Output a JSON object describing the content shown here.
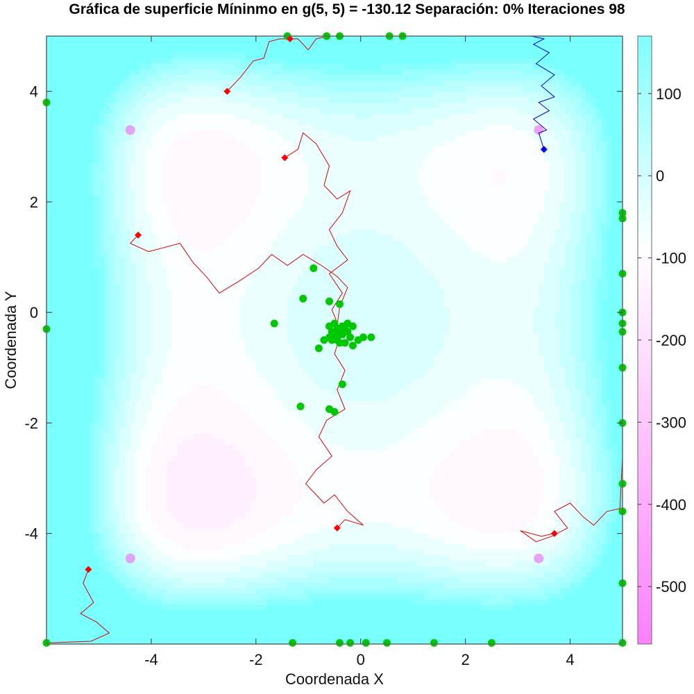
{
  "chart_data": {
    "type": "heatmap",
    "title": "Gráfica de superficie Míninmo en g(5, 5) = -130.12 Separación: 0% Iteraciones 98",
    "xlabel": "Coordenada X",
    "ylabel": "Coordenada Y",
    "xlim": [
      -6,
      5
    ],
    "ylim": [
      -6,
      5
    ],
    "x_ticks": [
      {
        "v": -4,
        "label": "-4"
      },
      {
        "v": -2,
        "label": "-2"
      },
      {
        "v": 0,
        "label": "0"
      },
      {
        "v": 2,
        "label": "2"
      },
      {
        "v": 4,
        "label": "4"
      }
    ],
    "y_ticks": [
      {
        "v": -4,
        "label": "-4"
      },
      {
        "v": -2,
        "label": "-2"
      },
      {
        "v": 0,
        "label": "0"
      },
      {
        "v": 2,
        "label": "2"
      },
      {
        "v": 4,
        "label": "4"
      }
    ],
    "colorbar": {
      "range": [
        -570,
        170
      ],
      "ticks": [
        {
          "v": 100,
          "label": "100"
        },
        {
          "v": 0,
          "label": "0"
        },
        {
          "v": -100,
          "label": "-100"
        },
        {
          "v": -200,
          "label": "-200"
        },
        {
          "v": -300,
          "label": "-300"
        },
        {
          "v": -400,
          "label": "-400"
        },
        {
          "v": -500,
          "label": "-500"
        }
      ],
      "low_color": "#ff80ff",
      "mid_color": "#ffffff",
      "high_color": "#80ffff"
    },
    "surface": {
      "function": "styblinski_tang_sum",
      "levels": 22,
      "center_x": -0.1,
      "center_y": -0.3,
      "minima": [
        [
          -4.4,
          3.3
        ],
        [
          3.4,
          3.3
        ],
        [
          -4.4,
          -4.45
        ],
        [
          3.4,
          -4.45
        ]
      ]
    },
    "colors": {
      "swarm": "#00c800",
      "trail": "#dd0000",
      "best_trail": "#0000dd",
      "marker": "#ff0000",
      "best_marker": "#0000ff",
      "frame": "#666666"
    },
    "swarm_points": [
      [
        -0.45,
        -0.3
      ],
      [
        -0.4,
        -0.35
      ],
      [
        -0.35,
        -0.4
      ],
      [
        -0.5,
        -0.4
      ],
      [
        -0.3,
        -0.3
      ],
      [
        -0.45,
        -0.45
      ],
      [
        -0.6,
        -0.25
      ],
      [
        -0.25,
        -0.35
      ],
      [
        -0.4,
        -0.55
      ],
      [
        -0.55,
        -0.5
      ],
      [
        -0.35,
        -0.25
      ],
      [
        -0.5,
        -0.2
      ],
      [
        -0.2,
        -0.45
      ],
      [
        -0.6,
        -0.45
      ],
      [
        -0.3,
        -0.55
      ],
      [
        -0.15,
        -0.25
      ],
      [
        -0.05,
        -0.5
      ],
      [
        0.2,
        -0.45
      ],
      [
        -0.7,
        -0.5
      ],
      [
        -0.8,
        -0.65
      ],
      [
        -0.4,
        0.15
      ],
      [
        -0.6,
        0.2
      ],
      [
        -1.1,
        0.25
      ],
      [
        -0.9,
        0.8
      ],
      [
        -1.65,
        -0.2
      ],
      [
        -0.35,
        -1.3
      ],
      [
        -0.6,
        -1.75
      ],
      [
        -0.5,
        -1.8
      ],
      [
        -1.15,
        -1.7
      ],
      [
        -0.15,
        -0.6
      ],
      [
        -0.45,
        -0.5
      ],
      [
        0.05,
        -0.45
      ],
      [
        -0.25,
        -0.2
      ],
      [
        -0.55,
        -0.35
      ],
      [
        -6,
        3.8
      ],
      [
        -6,
        -0.3
      ],
      [
        -6,
        -5.98
      ],
      [
        5,
        1.8
      ],
      [
        5,
        1.7
      ],
      [
        5,
        0.7
      ],
      [
        5,
        0.0
      ],
      [
        5,
        -0.2
      ],
      [
        5,
        -0.35
      ],
      [
        5,
        -1.0
      ],
      [
        5,
        -2.0
      ],
      [
        5,
        -3.1
      ],
      [
        5,
        -3.6
      ],
      [
        5,
        -4.9
      ],
      [
        5,
        -5.98
      ],
      [
        -1.4,
        5.0
      ],
      [
        -0.65,
        5.0
      ],
      [
        -0.4,
        5.0
      ],
      [
        0.55,
        5.0
      ],
      [
        0.8,
        5.0
      ],
      [
        -1.3,
        -5.98
      ],
      [
        -0.4,
        -5.98
      ],
      [
        -0.2,
        -5.98
      ],
      [
        0.1,
        -5.98
      ],
      [
        0.5,
        -5.98
      ],
      [
        1.4,
        -5.98
      ],
      [
        2.5,
        -5.98
      ]
    ],
    "markers": [
      {
        "x": -2.55,
        "y": 4.0,
        "color": "red"
      },
      {
        "x": -1.45,
        "y": 2.8,
        "color": "red"
      },
      {
        "x": -1.35,
        "y": 4.95,
        "color": "red"
      },
      {
        "x": -4.25,
        "y": 1.4,
        "color": "red"
      },
      {
        "x": -0.45,
        "y": -3.9,
        "color": "red"
      },
      {
        "x": -5.2,
        "y": -4.65,
        "color": "red"
      },
      {
        "x": 3.7,
        "y": -4.0,
        "color": "red"
      },
      {
        "x": 3.5,
        "y": 2.95,
        "color": "blue"
      }
    ],
    "trails": [
      {
        "color": "blue",
        "points": [
          [
            3.5,
            2.95
          ],
          [
            3.4,
            3.25
          ],
          [
            3.55,
            3.3
          ],
          [
            3.3,
            3.5
          ],
          [
            3.6,
            3.65
          ],
          [
            3.4,
            3.8
          ],
          [
            3.7,
            3.9
          ],
          [
            3.45,
            4.1
          ],
          [
            3.7,
            4.3
          ],
          [
            3.35,
            4.5
          ],
          [
            3.6,
            4.7
          ],
          [
            3.3,
            4.85
          ],
          [
            3.5,
            4.95
          ],
          [
            3.25,
            5.0
          ],
          [
            5.0,
            5.0
          ]
        ]
      },
      {
        "color": "red",
        "points": [
          [
            -2.55,
            4.0
          ],
          [
            -2.3,
            4.25
          ],
          [
            -2.05,
            4.55
          ],
          [
            -1.85,
            4.6
          ],
          [
            -1.75,
            4.9
          ],
          [
            -1.55,
            4.95
          ],
          [
            -1.2,
            4.95
          ],
          [
            -1.0,
            4.75
          ],
          [
            -0.85,
            4.95
          ],
          [
            -0.6,
            5.0
          ],
          [
            0.3,
            5.0
          ]
        ]
      },
      {
        "color": "red",
        "points": [
          [
            -1.45,
            2.8
          ],
          [
            -1.2,
            2.95
          ],
          [
            -1.1,
            3.25
          ],
          [
            -0.85,
            3.05
          ],
          [
            -0.6,
            2.65
          ],
          [
            -0.7,
            2.3
          ],
          [
            -0.45,
            2.05
          ],
          [
            -0.2,
            2.2
          ],
          [
            -0.35,
            1.8
          ],
          [
            -0.6,
            1.5
          ],
          [
            -0.45,
            1.2
          ],
          [
            -0.25,
            0.95
          ],
          [
            -0.6,
            0.7
          ],
          [
            -0.35,
            0.35
          ],
          [
            -0.55,
            0.05
          ],
          [
            -0.4,
            -0.3
          ]
        ]
      },
      {
        "color": "red",
        "points": [
          [
            -4.25,
            1.4
          ],
          [
            -4.4,
            1.25
          ],
          [
            -4.05,
            1.1
          ],
          [
            -3.45,
            1.25
          ],
          [
            -3.2,
            0.9
          ],
          [
            -2.95,
            0.65
          ],
          [
            -2.7,
            0.35
          ],
          [
            -2.35,
            0.55
          ],
          [
            -1.95,
            0.8
          ],
          [
            -1.7,
            1.05
          ],
          [
            -1.4,
            0.85
          ],
          [
            -1.1,
            1.05
          ],
          [
            -0.75,
            0.85
          ],
          [
            -0.45,
            0.65
          ],
          [
            -0.25,
            0.45
          ],
          [
            -0.4,
            0.1
          ],
          [
            -0.45,
            -0.25
          ]
        ]
      },
      {
        "color": "red",
        "points": [
          [
            -0.45,
            -3.9
          ],
          [
            -0.3,
            -3.75
          ],
          [
            0.05,
            -3.85
          ],
          [
            -0.25,
            -3.6
          ],
          [
            -0.5,
            -3.3
          ],
          [
            -0.7,
            -3.45
          ],
          [
            -1.05,
            -3.1
          ],
          [
            -0.85,
            -2.85
          ],
          [
            -0.55,
            -2.6
          ],
          [
            -0.8,
            -2.25
          ],
          [
            -0.65,
            -1.95
          ],
          [
            -0.3,
            -1.75
          ],
          [
            -0.45,
            -1.4
          ],
          [
            -0.3,
            -1.05
          ],
          [
            -0.5,
            -0.75
          ],
          [
            -0.4,
            -0.45
          ]
        ]
      },
      {
        "color": "red",
        "points": [
          [
            -5.2,
            -4.65
          ],
          [
            -5.3,
            -4.9
          ],
          [
            -5.1,
            -5.25
          ],
          [
            -5.35,
            -5.45
          ],
          [
            -5.05,
            -5.6
          ],
          [
            -4.8,
            -5.8
          ],
          [
            -5.15,
            -5.95
          ],
          [
            -6.0,
            -5.98
          ]
        ]
      },
      {
        "color": "red",
        "points": [
          [
            3.7,
            -4.0
          ],
          [
            3.45,
            -4.05
          ],
          [
            3.05,
            -3.95
          ],
          [
            3.35,
            -4.15
          ],
          [
            3.65,
            -4.05
          ],
          [
            3.95,
            -3.9
          ],
          [
            3.7,
            -3.6
          ],
          [
            4.0,
            -3.45
          ],
          [
            4.25,
            -3.7
          ],
          [
            4.45,
            -3.85
          ],
          [
            4.7,
            -3.6
          ],
          [
            4.95,
            -3.55
          ],
          [
            5.0,
            -2.6
          ]
        ]
      }
    ]
  }
}
